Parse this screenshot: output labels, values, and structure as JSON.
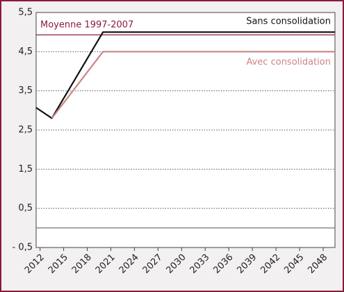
{
  "chart_data": {
    "type": "line",
    "x": [
      2011.5,
      2013.5,
      2020,
      2049.5
    ],
    "series": [
      {
        "name": "Sans consolidation",
        "color": "#111111",
        "values": [
          3.07,
          2.8,
          5.0,
          5.0
        ]
      },
      {
        "name": "Avec consolidation",
        "color": "#c98585",
        "values": [
          null,
          2.8,
          4.5,
          4.5
        ]
      }
    ],
    "reference_lines": [
      {
        "name": "Moyenne 1997-2007",
        "value": 4.93,
        "color": "#8b1a3a"
      }
    ],
    "zero_line": true,
    "xlim": [
      2011.5,
      2049.5
    ],
    "xticks": [
      2012,
      2015,
      2018,
      2021,
      2024,
      2027,
      2030,
      2033,
      2036,
      2039,
      2042,
      2045,
      2048
    ],
    "ylim": [
      -0.5,
      5.5
    ],
    "yticks": [
      {
        "value": -0.5,
        "label": "- 0,5"
      },
      {
        "value": 0.5,
        "label": "0,5"
      },
      {
        "value": 1.5,
        "label": "1,5"
      },
      {
        "value": 2.5,
        "label": "2,5"
      },
      {
        "value": 3.5,
        "label": "3,5"
      },
      {
        "value": 4.5,
        "label": "4,5"
      },
      {
        "value": 5.5,
        "label": "5,5"
      }
    ],
    "grid": true
  }
}
